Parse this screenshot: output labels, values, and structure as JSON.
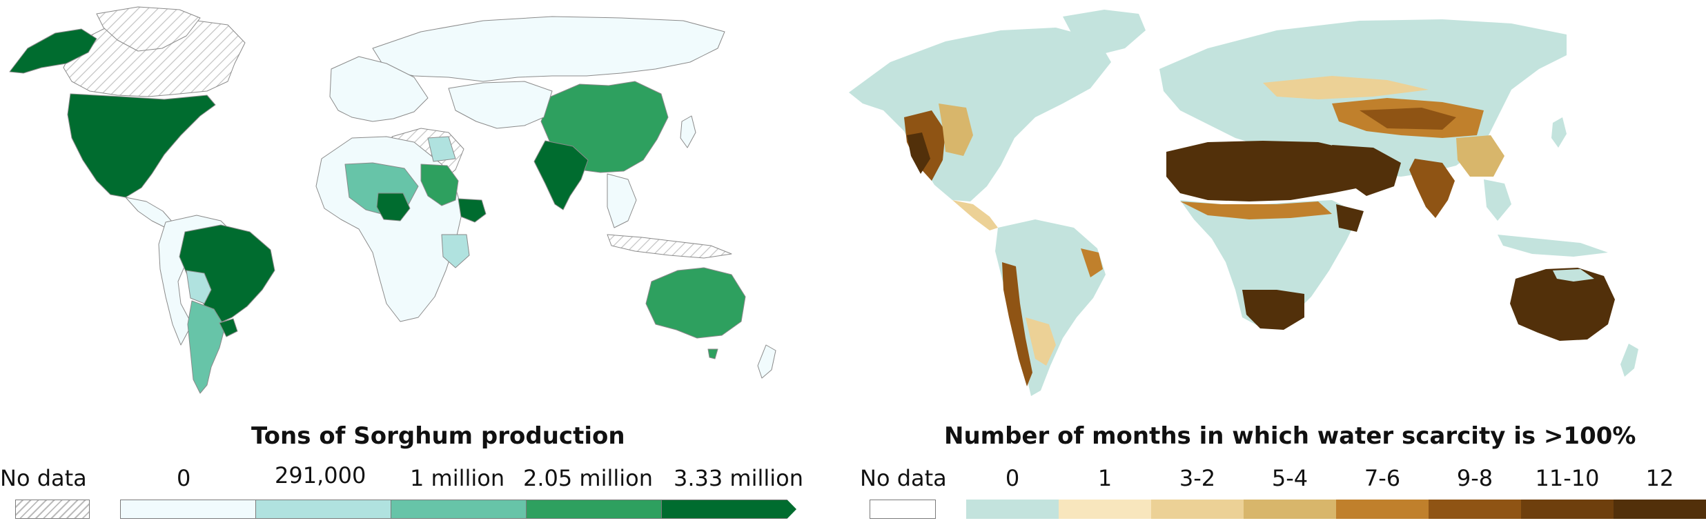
{
  "left_legend": {
    "title": "Tons of Sorghum production",
    "no_data_label": "No data",
    "bins": [
      {
        "label": "0",
        "color": "#f1fbfd"
      },
      {
        "label": "291,000",
        "color": "#b0e2df"
      },
      {
        "label": "1 million",
        "color": "#67c4a8"
      },
      {
        "label": "2.05 million",
        "color": "#2ea05f"
      },
      {
        "label": "3.33 million",
        "color": "#006c2f"
      }
    ]
  },
  "right_legend": {
    "title": "Number of months in which water scarcity is >100%",
    "no_data_label": "No data",
    "bins": [
      {
        "label": "0",
        "color": "#c3e3dd"
      },
      {
        "label": "1",
        "color": "#f8e6bd"
      },
      {
        "label": "3-2",
        "color": "#ecd196"
      },
      {
        "label": "5-4",
        "color": "#d8b66b"
      },
      {
        "label": "7-6",
        "color": "#c0802c"
      },
      {
        "label": "9-8",
        "color": "#8f5414"
      },
      {
        "label": "11-10",
        "color": "#6e3f0d"
      },
      {
        "label": "12",
        "color": "#52300a"
      }
    ]
  },
  "colors": {
    "no_data_hatch": "#bbbbbb",
    "country_border": "#8a8a8a"
  }
}
